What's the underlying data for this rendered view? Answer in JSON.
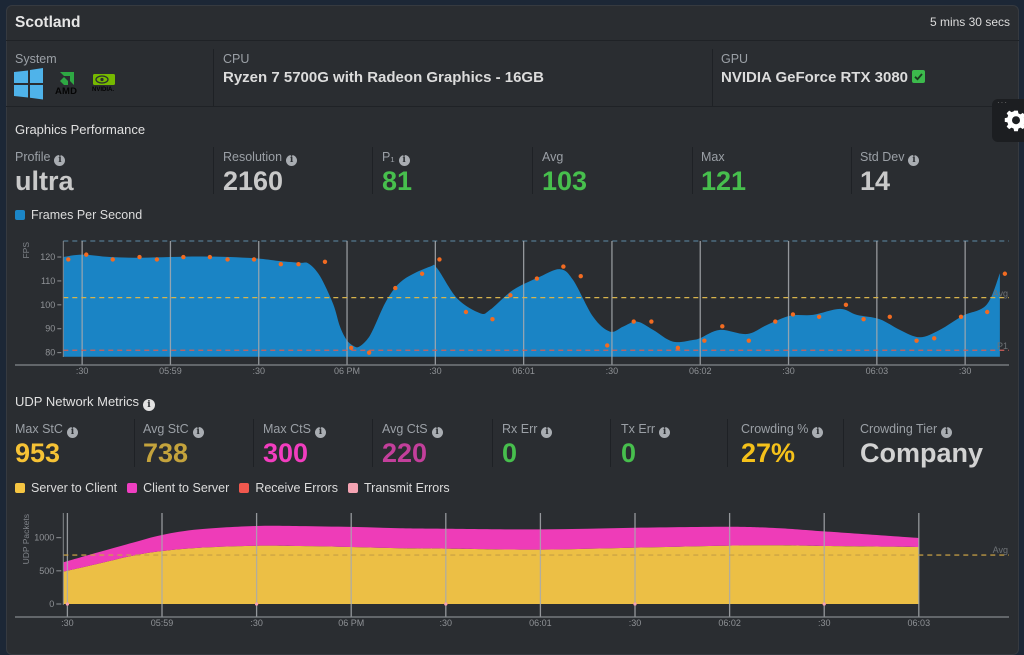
{
  "header": {
    "title": "Scotland",
    "elapsed": "5 mins 30 secs"
  },
  "settings": {
    "icon": "gear-icon"
  },
  "system_info": {
    "system": {
      "label": "System",
      "os_icon": "windows-logo",
      "cpu_vendor_icon": "amd-logo",
      "cpu_vendor_text": "AMD",
      "gpu_vendor_icon": "nvidia-logo",
      "gpu_vendor_text": "NVIDIA."
    },
    "cpu": {
      "label": "CPU",
      "value": "Ryzen 7 5700G with Radeon Graphics - 16GB"
    },
    "gpu": {
      "label": "GPU",
      "value": "NVIDIA GeForce RTX 3080",
      "status_icon": "check-square-icon",
      "status_color": "#3cba4c"
    }
  },
  "graphics": {
    "title": "Graphics Performance",
    "stats": [
      {
        "label": "Profile",
        "value": "ultra",
        "color": "#c9c9c9",
        "info": true
      },
      {
        "label": "Resolution",
        "value": "2160",
        "color": "#c9c9c9",
        "info": true
      },
      {
        "label": "P₁",
        "value": "81",
        "color": "#47bf4d",
        "info": true
      },
      {
        "label": "Avg",
        "value": "103",
        "color": "#47bf4d",
        "info": false
      },
      {
        "label": "Max",
        "value": "121",
        "color": "#47bf4d",
        "info": false
      },
      {
        "label": "Std Dev",
        "value": "14",
        "color": "#c9c9c9",
        "info": true
      }
    ],
    "legend": [
      {
        "label": "Frames Per Second",
        "color": "#1b86c8"
      }
    ]
  },
  "network": {
    "title": "UDP Network Metrics",
    "stats": [
      {
        "label": "Max StC",
        "value": "953",
        "color": "#f6c235",
        "info": true
      },
      {
        "label": "Avg StC",
        "value": "738",
        "color": "#c4a33c",
        "info": true
      },
      {
        "label": "Max CtS",
        "value": "300",
        "color": "#f23dbf",
        "info": true
      },
      {
        "label": "Avg CtS",
        "value": "220",
        "color": "#c33f9b",
        "info": true
      },
      {
        "label": "Rx Err",
        "value": "0",
        "color": "#47bf4d",
        "info": true
      },
      {
        "label": "Tx Err",
        "value": "0",
        "color": "#47bf4d",
        "info": true
      },
      {
        "label": "Crowding %",
        "value": "27%",
        "color": "#f5c11a",
        "info": true
      },
      {
        "label": "Crowding Tier",
        "value": "Company",
        "color": "#d2d2d2",
        "info": true
      }
    ],
    "legend": [
      {
        "label": "Server to Client",
        "color": "#f5c542"
      },
      {
        "label": "Client to Server",
        "color": "#ef3fc1"
      },
      {
        "label": "Receive Errors",
        "color": "#f0584e"
      },
      {
        "label": "Transmit Errors",
        "color": "#f4a3b2"
      }
    ]
  },
  "chart_data": [
    {
      "type": "area",
      "title": "",
      "xlabel": "",
      "ylabel": "FPS",
      "x_unit": "seconds after 17:58:00",
      "xlim": [
        23.6,
        344.9
      ],
      "ylim": [
        78.3,
        126.7
      ],
      "grid": "vertical",
      "legend": "top-left",
      "yticks": [
        80,
        90,
        100,
        110,
        120
      ],
      "xticks": [
        {
          "t": 30,
          "label": ":30"
        },
        {
          "t": 60,
          "label": "05:59"
        },
        {
          "t": 90,
          "label": ":30"
        },
        {
          "t": 120,
          "label": "06 PM"
        },
        {
          "t": 150,
          "label": ":30"
        },
        {
          "t": 180,
          "label": "06:01"
        },
        {
          "t": 210,
          "label": ":30"
        },
        {
          "t": 240,
          "label": "06:02"
        },
        {
          "t": 270,
          "label": ":30"
        },
        {
          "t": 300,
          "label": "06:03"
        },
        {
          "t": 330,
          "label": ":30"
        }
      ],
      "reference_lines": [
        {
          "name": "Avg",
          "value": 103,
          "color": "#d8b44c"
        },
        {
          "name": "P1",
          "value": 81,
          "color": "#cf5f5a"
        }
      ],
      "series": [
        {
          "name": "Frames Per Second",
          "kind": "area",
          "color": "#1a84c5",
          "points": [
            [
              23.6,
              120
            ],
            [
              30,
              121
            ],
            [
              39.5,
              120
            ],
            [
              49.7,
              119.7
            ],
            [
              59.9,
              120
            ],
            [
              70.1,
              120.2
            ],
            [
              80.3,
              120
            ],
            [
              90.5,
              119.3
            ],
            [
              97.3,
              118.3
            ],
            [
              104.1,
              117.6
            ],
            [
              107,
              117.2
            ],
            [
              110.8,
              112
            ],
            [
              115.3,
              100.3
            ],
            [
              117.6,
              90.9
            ],
            [
              119.9,
              85.3
            ],
            [
              122.2,
              82.8
            ],
            [
              124,
              82.4
            ],
            [
              126.7,
              85.3
            ],
            [
              128.8,
              89.5
            ],
            [
              133.5,
              102
            ],
            [
              139,
              110.4
            ],
            [
              148.2,
              116
            ],
            [
              150.6,
              115.3
            ],
            [
              157.4,
              102.7
            ],
            [
              165.2,
              96.5
            ],
            [
              168.6,
              97.9
            ],
            [
              176.4,
              106.2
            ],
            [
              185.6,
              111.8
            ],
            [
              192.4,
              114.9
            ],
            [
              196.8,
              110.4
            ],
            [
              203.6,
              95
            ],
            [
              209.3,
              88.8
            ],
            [
              213.8,
              90.9
            ],
            [
              218.5,
              93
            ],
            [
              224,
              89.5
            ],
            [
              230.7,
              84.6
            ],
            [
              237.5,
              85.3
            ],
            [
              239.9,
              86
            ],
            [
              246.7,
              89.5
            ],
            [
              255.9,
              87.8
            ],
            [
              262.7,
              91.6
            ],
            [
              270.5,
              95.4
            ],
            [
              278.3,
              95.8
            ],
            [
              287.5,
              98.3
            ],
            [
              293.2,
              95.8
            ],
            [
              301,
              94
            ],
            [
              307.8,
              89.5
            ],
            [
              314.6,
              86.4
            ],
            [
              321.4,
              89.5
            ],
            [
              329.2,
              95.4
            ],
            [
              337.3,
              100
            ],
            [
              341.8,
              113.2
            ]
          ]
        },
        {
          "name": "FPS samples",
          "kind": "scatter",
          "color": "#f26b21",
          "points": [
            [
              25.3,
              119
            ],
            [
              31.4,
              121
            ],
            [
              40.4,
              119
            ],
            [
              49.5,
              120
            ],
            [
              55.4,
              119
            ],
            [
              64.4,
              120
            ],
            [
              73.4,
              120
            ],
            [
              79.4,
              119
            ],
            [
              88.4,
              119
            ],
            [
              97.5,
              117
            ],
            [
              103.5,
              117
            ],
            [
              112.5,
              118
            ],
            [
              121.4,
              82
            ],
            [
              127.5,
              80
            ],
            [
              136.4,
              107
            ],
            [
              145.5,
              113
            ],
            [
              151.4,
              119
            ],
            [
              160.4,
              97
            ],
            [
              169.4,
              94
            ],
            [
              175.5,
              104
            ],
            [
              184.5,
              111
            ],
            [
              193.5,
              116
            ],
            [
              199.4,
              112
            ],
            [
              208.4,
              83
            ],
            [
              217.4,
              93
            ],
            [
              223.4,
              93
            ],
            [
              232.4,
              82
            ],
            [
              241.4,
              85
            ],
            [
              247.5,
              91
            ],
            [
              256.5,
              85
            ],
            [
              265.5,
              93
            ],
            [
              271.5,
              96
            ],
            [
              280.4,
              95
            ],
            [
              289.5,
              100
            ],
            [
              295.5,
              94
            ],
            [
              304.4,
              95
            ],
            [
              313.5,
              85
            ],
            [
              319.5,
              86
            ],
            [
              328.6,
              95
            ],
            [
              337.5,
              97
            ],
            [
              343.5,
              113
            ]
          ]
        }
      ]
    },
    {
      "type": "area",
      "stacked": true,
      "title": "",
      "xlabel": "",
      "ylabel": "UDP Packets",
      "x_unit": "seconds after 17:58:00",
      "xlim": [
        28.7,
        328.6
      ],
      "ylim": [
        0,
        1372
      ],
      "grid": "vertical",
      "legend": "top-left",
      "yticks": [
        0,
        500,
        1000
      ],
      "xticks": [
        {
          "t": 30,
          "label": ":30"
        },
        {
          "t": 60,
          "label": "05:59"
        },
        {
          "t": 90,
          "label": ":30"
        },
        {
          "t": 120,
          "label": "06 PM"
        },
        {
          "t": 150,
          "label": ":30"
        },
        {
          "t": 180,
          "label": "06:01"
        },
        {
          "t": 210,
          "label": ":30"
        },
        {
          "t": 240,
          "label": "06:02"
        },
        {
          "t": 270,
          "label": ":30"
        },
        {
          "t": 300,
          "label": "06:03"
        }
      ],
      "reference_lines": [
        {
          "name": "Avg",
          "value": 738,
          "color": "#c9a245"
        }
      ],
      "series": [
        {
          "name": "Server to Client",
          "kind": "area",
          "color": "#ecbf45",
          "points": [
            [
              28.7,
              487
            ],
            [
              40.4,
              614
            ],
            [
              50.8,
              729
            ],
            [
              60,
              799
            ],
            [
              72,
              849
            ],
            [
              90,
              879
            ],
            [
              103.7,
              875
            ],
            [
              120,
              860
            ],
            [
              135.5,
              840
            ],
            [
              150,
              835
            ],
            [
              180,
              820
            ],
            [
              210,
              850
            ],
            [
              240,
              880
            ],
            [
              255,
              885
            ],
            [
              270,
              875
            ],
            [
              300,
              860
            ]
          ]
        },
        {
          "name": "Client to Server",
          "kind": "area",
          "color": "#ee3cb8",
          "points": [
            [
              28.7,
              142
            ],
            [
              40.4,
              175
            ],
            [
              50.8,
              196
            ],
            [
              60,
              242
            ],
            [
              72,
              278
            ],
            [
              90,
              297
            ],
            [
              103.7,
              300
            ],
            [
              120,
              302
            ],
            [
              135.5,
              303
            ],
            [
              150,
              300
            ],
            [
              180,
              305
            ],
            [
              210,
              300
            ],
            [
              240,
              285
            ],
            [
              255,
              260
            ],
            [
              270,
              220
            ],
            [
              300,
              135
            ]
          ]
        },
        {
          "name": "Receive Errors",
          "kind": "marker",
          "color": "#f0584e",
          "points": [
            [
              30,
              0
            ],
            [
              90,
              0
            ],
            [
              150,
              0
            ],
            [
              210,
              0
            ],
            [
              270,
              0
            ]
          ]
        },
        {
          "name": "Transmit Errors",
          "kind": "marker",
          "color": "#f4a3b2",
          "points": [
            [
              30,
              0
            ],
            [
              90,
              0
            ],
            [
              150,
              0
            ],
            [
              210,
              0
            ],
            [
              270,
              0
            ]
          ]
        }
      ]
    }
  ]
}
